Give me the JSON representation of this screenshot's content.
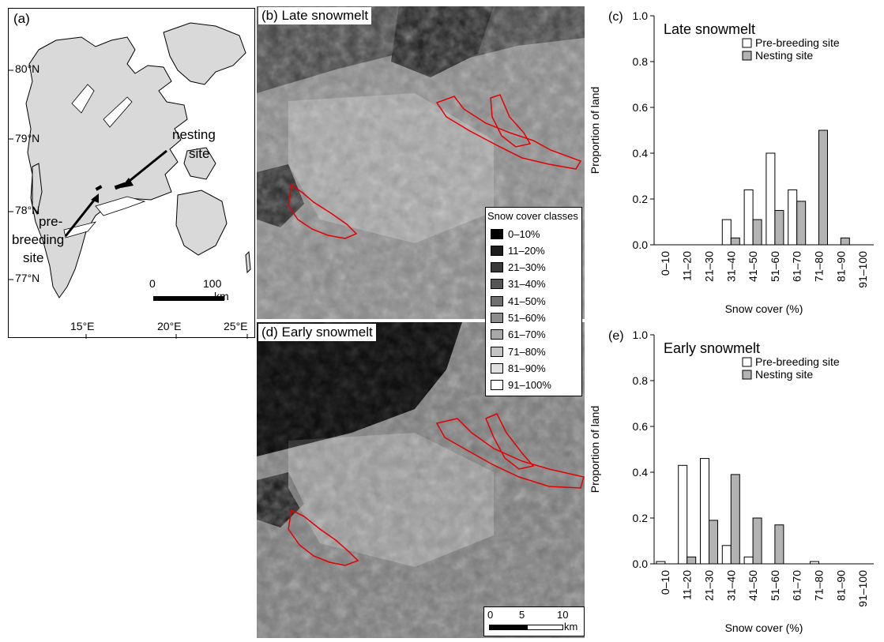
{
  "panel_a": {
    "label": "(a)",
    "lat_labels": [
      "80°N",
      "79°N",
      "78°N",
      "77°N"
    ],
    "lon_labels": [
      "15°E",
      "20°E",
      "25°E"
    ],
    "annotation_nesting_1": "nesting",
    "annotation_nesting_2": "site",
    "annotation_pre_1": "pre-",
    "annotation_pre_2": "breeding",
    "annotation_pre_3": "site",
    "scale_zero": "0",
    "scale_hundred": "100",
    "scale_unit": "km"
  },
  "panel_b": {
    "label": "(b) Late snowmelt"
  },
  "panel_d": {
    "label": "(d) Early snowmelt"
  },
  "legend": {
    "title": "Snow cover classes",
    "classes": [
      {
        "label": "0–10%",
        "color": "#000000"
      },
      {
        "label": "11–20%",
        "color": "#1c1c1c"
      },
      {
        "label": "21–30%",
        "color": "#383838"
      },
      {
        "label": "31–40%",
        "color": "#545454"
      },
      {
        "label": "41–50%",
        "color": "#707070"
      },
      {
        "label": "51–60%",
        "color": "#8c8c8c"
      },
      {
        "label": "61–70%",
        "color": "#a8a8a8"
      },
      {
        "label": "71–80%",
        "color": "#c4c4c4"
      },
      {
        "label": "81–90%",
        "color": "#e0e0e0"
      },
      {
        "label": "91–100%",
        "color": "#ffffff"
      }
    ]
  },
  "scalebar_d": {
    "zero": "0",
    "five": "5",
    "ten": "10",
    "unit": "km"
  },
  "colors": {
    "outline": "#e60000",
    "pre_breeding": "#ffffff",
    "nesting": "#b3b3b3"
  },
  "chart_data": [
    {
      "panel": "(c)",
      "type": "bar",
      "title": "Late snowmelt",
      "xlabel": "Snow cover (%)",
      "ylabel": "Proportion of land",
      "ylim": [
        0,
        1.0
      ],
      "yticks": [
        "0.0",
        "0.2",
        "0.4",
        "0.6",
        "0.8",
        "1.0"
      ],
      "categories": [
        "0–10",
        "11–20",
        "21–30",
        "31–40",
        "41–50",
        "51–60",
        "61–70",
        "71–80",
        "81–90",
        "91–100"
      ],
      "legend_position": "top-center",
      "series": [
        {
          "name": "Pre-breeding site",
          "values": [
            0,
            0,
            0,
            0.11,
            0.24,
            0.4,
            0.24,
            0,
            0,
            0
          ]
        },
        {
          "name": "Nesting site",
          "values": [
            0,
            0,
            0,
            0.03,
            0.11,
            0.15,
            0.19,
            0.5,
            0.03,
            0
          ]
        }
      ]
    },
    {
      "panel": "(e)",
      "type": "bar",
      "title": "Early snowmelt",
      "xlabel": "Snow cover (%)",
      "ylabel": "Proportion of land",
      "ylim": [
        0,
        1.0
      ],
      "yticks": [
        "0.0",
        "0.2",
        "0.4",
        "0.6",
        "0.8",
        "1.0"
      ],
      "categories": [
        "0–10",
        "11–20",
        "21–30",
        "31–40",
        "41–50",
        "51–60",
        "61–70",
        "71–80",
        "81–90",
        "91–100"
      ],
      "legend_position": "top-center",
      "series": [
        {
          "name": "Pre-breeding site",
          "values": [
            0.01,
            0.43,
            0.46,
            0.08,
            0.03,
            0,
            0,
            0.01,
            0,
            0
          ]
        },
        {
          "name": "Nesting site",
          "values": [
            0,
            0.03,
            0.19,
            0.39,
            0.2,
            0.17,
            0,
            0,
            0,
            0
          ]
        }
      ]
    }
  ]
}
